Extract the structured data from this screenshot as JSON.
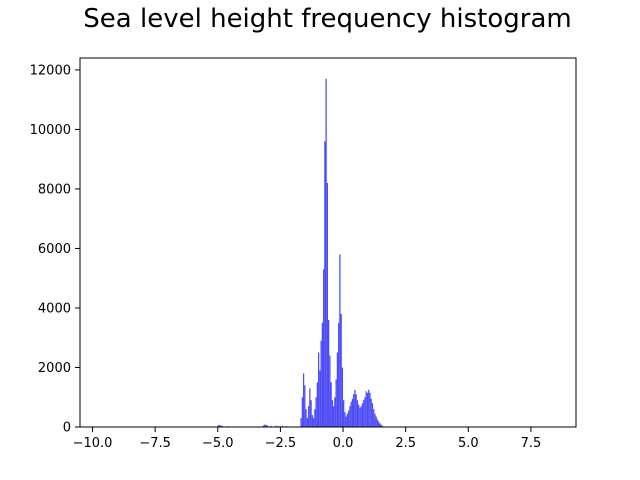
{
  "chart_data": {
    "type": "bar",
    "title": "Sea level height frequency histogram",
    "xlabel": "",
    "ylabel": "",
    "xlim": [
      -10.5,
      9.3
    ],
    "ylim": [
      0,
      12400
    ],
    "xticks": [
      -10.0,
      -7.5,
      -5.0,
      -2.5,
      0.0,
      2.5,
      5.0,
      7.5
    ],
    "xtick_labels": [
      "−10.0",
      "−7.5",
      "−5.0",
      "−2.5",
      "0.0",
      "2.5",
      "5.0",
      "7.5"
    ],
    "yticks": [
      0,
      2000,
      4000,
      6000,
      8000,
      10000,
      12000
    ],
    "ytick_labels": [
      "0",
      "2000",
      "4000",
      "6000",
      "8000",
      "10000",
      "12000"
    ],
    "bar_color": "#4b4bf7",
    "bin_width": 0.05,
    "bins": [
      {
        "x": -5.0,
        "count": 60
      },
      {
        "x": -4.95,
        "count": 70
      },
      {
        "x": -4.9,
        "count": 50
      },
      {
        "x": -4.85,
        "count": 40
      },
      {
        "x": -4.6,
        "count": 30
      },
      {
        "x": -4.2,
        "count": 20
      },
      {
        "x": -3.2,
        "count": 50
      },
      {
        "x": -3.15,
        "count": 80
      },
      {
        "x": -3.1,
        "count": 70
      },
      {
        "x": -3.05,
        "count": 60
      },
      {
        "x": -2.9,
        "count": 40
      },
      {
        "x": -2.7,
        "count": 50
      },
      {
        "x": -2.6,
        "count": 30
      },
      {
        "x": -2.45,
        "count": 40
      },
      {
        "x": -2.3,
        "count": 30
      },
      {
        "x": -1.7,
        "count": 300
      },
      {
        "x": -1.65,
        "count": 1000
      },
      {
        "x": -1.6,
        "count": 1800
      },
      {
        "x": -1.55,
        "count": 1400
      },
      {
        "x": -1.5,
        "count": 600
      },
      {
        "x": -1.45,
        "count": 300
      },
      {
        "x": -1.4,
        "count": 700
      },
      {
        "x": -1.35,
        "count": 1300
      },
      {
        "x": -1.3,
        "count": 900
      },
      {
        "x": -1.25,
        "count": 400
      },
      {
        "x": -1.2,
        "count": 300
      },
      {
        "x": -1.15,
        "count": 600
      },
      {
        "x": -1.1,
        "count": 1000
      },
      {
        "x": -1.05,
        "count": 1500
      },
      {
        "x": -1.0,
        "count": 2500
      },
      {
        "x": -0.95,
        "count": 1900
      },
      {
        "x": -0.9,
        "count": 2900
      },
      {
        "x": -0.85,
        "count": 3500
      },
      {
        "x": -0.8,
        "count": 5300
      },
      {
        "x": -0.75,
        "count": 9600
      },
      {
        "x": -0.7,
        "count": 11700
      },
      {
        "x": -0.65,
        "count": 8200
      },
      {
        "x": -0.6,
        "count": 3600
      },
      {
        "x": -0.55,
        "count": 2400
      },
      {
        "x": -0.5,
        "count": 1500
      },
      {
        "x": -0.45,
        "count": 900
      },
      {
        "x": -0.4,
        "count": 700
      },
      {
        "x": -0.35,
        "count": 1000
      },
      {
        "x": -0.3,
        "count": 1600
      },
      {
        "x": -0.25,
        "count": 2500
      },
      {
        "x": -0.2,
        "count": 3500
      },
      {
        "x": -0.15,
        "count": 5800
      },
      {
        "x": -0.1,
        "count": 3800
      },
      {
        "x": -0.05,
        "count": 2000
      },
      {
        "x": 0.0,
        "count": 900
      },
      {
        "x": 0.05,
        "count": 500
      },
      {
        "x": 0.1,
        "count": 350
      },
      {
        "x": 0.15,
        "count": 450
      },
      {
        "x": 0.2,
        "count": 550
      },
      {
        "x": 0.25,
        "count": 700
      },
      {
        "x": 0.3,
        "count": 850
      },
      {
        "x": 0.35,
        "count": 950
      },
      {
        "x": 0.4,
        "count": 1100
      },
      {
        "x": 0.45,
        "count": 1250
      },
      {
        "x": 0.5,
        "count": 1100
      },
      {
        "x": 0.55,
        "count": 900
      },
      {
        "x": 0.6,
        "count": 750
      },
      {
        "x": 0.65,
        "count": 650
      },
      {
        "x": 0.7,
        "count": 700
      },
      {
        "x": 0.75,
        "count": 800
      },
      {
        "x": 0.8,
        "count": 900
      },
      {
        "x": 0.85,
        "count": 1000
      },
      {
        "x": 0.9,
        "count": 1200
      },
      {
        "x": 0.95,
        "count": 1150
      },
      {
        "x": 1.0,
        "count": 1250
      },
      {
        "x": 1.05,
        "count": 1150
      },
      {
        "x": 1.1,
        "count": 950
      },
      {
        "x": 1.15,
        "count": 800
      },
      {
        "x": 1.2,
        "count": 600
      },
      {
        "x": 1.25,
        "count": 450
      },
      {
        "x": 1.3,
        "count": 350
      },
      {
        "x": 1.35,
        "count": 250
      },
      {
        "x": 1.4,
        "count": 180
      },
      {
        "x": 1.45,
        "count": 120
      },
      {
        "x": 1.5,
        "count": 80
      },
      {
        "x": 1.55,
        "count": 40
      }
    ]
  }
}
